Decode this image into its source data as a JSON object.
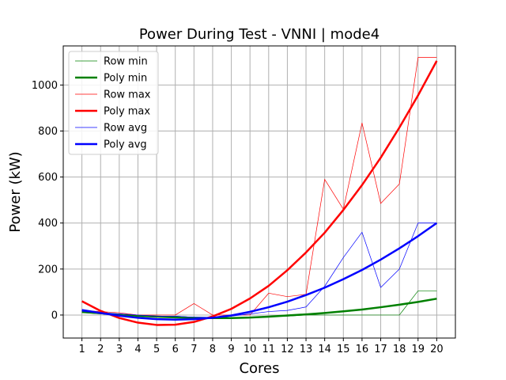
{
  "chart_data": {
    "type": "line",
    "title": "Power During Test - VNNI | mode4",
    "xlabel": "Cores",
    "ylabel": "Power (kW)",
    "x": [
      1,
      2,
      3,
      4,
      5,
      6,
      7,
      8,
      9,
      10,
      11,
      12,
      13,
      14,
      15,
      16,
      17,
      18,
      19,
      20
    ],
    "xlim": [
      0,
      21
    ],
    "ylim": [
      -100,
      1170
    ],
    "yticks": [
      0,
      200,
      400,
      600,
      800,
      1000
    ],
    "grid": true,
    "legend_position": "top-left",
    "series": [
      {
        "name": "Row min",
        "color": "#008000",
        "width": "thin",
        "values": [
          10,
          5,
          0,
          -5,
          -5,
          -5,
          -10,
          -10,
          -10,
          -10,
          -5,
          -5,
          0,
          0,
          0,
          0,
          0,
          0,
          105,
          105
        ]
      },
      {
        "name": "Poly min",
        "color": "#008000",
        "width": "thick",
        "values": [
          14,
          8,
          2,
          -3,
          -7,
          -10,
          -12,
          -13,
          -13,
          -11,
          -7,
          -2,
          3,
          9,
          16,
          24,
          34,
          45,
          57,
          71
        ]
      },
      {
        "name": "Row max",
        "color": "#ff0000",
        "width": "thin",
        "values": [
          20,
          15,
          10,
          0,
          0,
          0,
          50,
          0,
          0,
          0,
          95,
          80,
          90,
          590,
          460,
          835,
          485,
          570,
          1120,
          1120
        ]
      },
      {
        "name": "Poly max",
        "color": "#ff0000",
        "width": "thick",
        "values": [
          60,
          18,
          -13,
          -33,
          -43,
          -42,
          -30,
          -6,
          27,
          72,
          127,
          195,
          272,
          358,
          457,
          565,
          684,
          815,
          955,
          1105
        ]
      },
      {
        "name": "Row avg",
        "color": "#0000ff",
        "width": "thin",
        "values": [
          15,
          10,
          5,
          0,
          -5,
          -5,
          -10,
          -10,
          -5,
          5,
          15,
          20,
          35,
          125,
          250,
          360,
          120,
          200,
          400,
          400
        ]
      },
      {
        "name": "Poly avg",
        "color": "#0000ff",
        "width": "thick",
        "values": [
          22,
          9,
          -3,
          -12,
          -18,
          -20,
          -18,
          -12,
          -2,
          14,
          34,
          58,
          87,
          119,
          156,
          196,
          241,
          290,
          343,
          400
        ]
      }
    ]
  }
}
